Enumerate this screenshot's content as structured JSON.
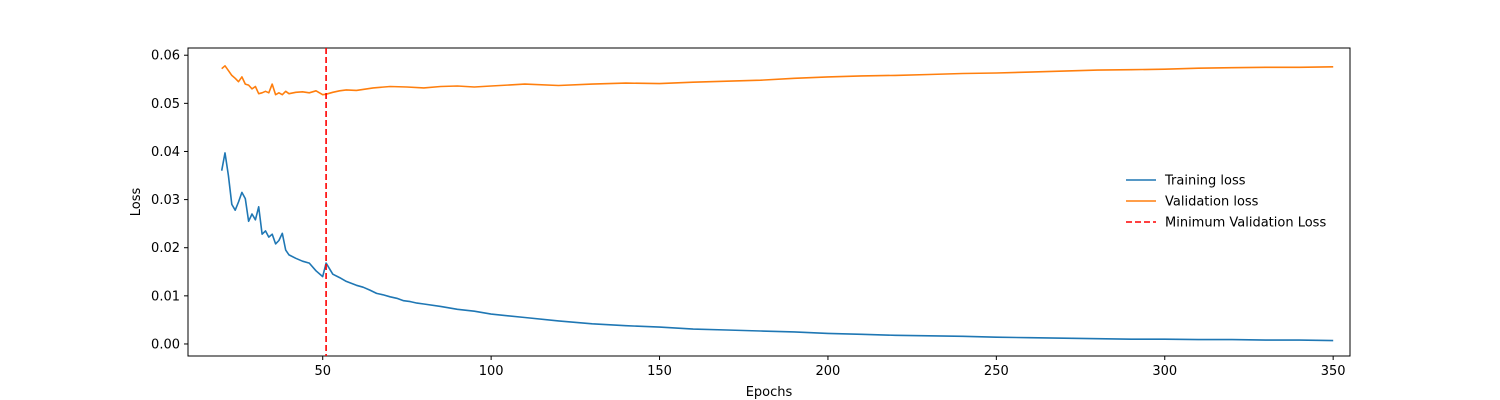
{
  "chart_data": {
    "type": "line",
    "xlabel": "Epochs",
    "ylabel": "Loss",
    "xlim": [
      10,
      355
    ],
    "ylim": [
      -0.0025,
      0.0615
    ],
    "xticks": [
      50,
      100,
      150,
      200,
      250,
      300,
      350
    ],
    "yticks": [
      0.0,
      0.01,
      0.02,
      0.03,
      0.04,
      0.05,
      0.06
    ],
    "ytick_labels": [
      "0.00",
      "0.01",
      "0.02",
      "0.03",
      "0.04",
      "0.05",
      "0.06"
    ],
    "grid": false,
    "legend_position": "center-right",
    "series": [
      {
        "name": "Training loss",
        "color": "#1f77b4",
        "x": [
          20,
          21,
          22,
          23,
          24,
          25,
          26,
          27,
          28,
          29,
          30,
          31,
          32,
          33,
          34,
          35,
          36,
          37,
          38,
          39,
          40,
          42,
          44,
          46,
          48,
          50,
          51,
          53,
          55,
          57,
          60,
          62,
          64,
          66,
          68,
          70,
          72,
          74,
          76,
          78,
          80,
          85,
          90,
          95,
          100,
          110,
          120,
          130,
          140,
          150,
          160,
          170,
          180,
          190,
          200,
          210,
          220,
          230,
          240,
          250,
          260,
          270,
          280,
          290,
          300,
          310,
          320,
          330,
          340,
          350
        ],
        "y": [
          0.036,
          0.0397,
          0.035,
          0.029,
          0.0278,
          0.0295,
          0.0315,
          0.0302,
          0.0255,
          0.027,
          0.0258,
          0.0285,
          0.0228,
          0.0235,
          0.0222,
          0.0228,
          0.0208,
          0.0215,
          0.023,
          0.0195,
          0.0185,
          0.0178,
          0.0172,
          0.0168,
          0.0152,
          0.014,
          0.0168,
          0.0145,
          0.0138,
          0.013,
          0.0122,
          0.0118,
          0.0112,
          0.0105,
          0.0102,
          0.0098,
          0.0095,
          0.009,
          0.0088,
          0.0085,
          0.0083,
          0.0078,
          0.0072,
          0.0068,
          0.0062,
          0.0055,
          0.0048,
          0.0042,
          0.0038,
          0.0035,
          0.0031,
          0.0029,
          0.0027,
          0.0025,
          0.0022,
          0.002,
          0.0018,
          0.0017,
          0.0016,
          0.0014,
          0.0013,
          0.0012,
          0.0011,
          0.001,
          0.001,
          0.0009,
          0.0009,
          0.0008,
          0.0008,
          0.0007
        ]
      },
      {
        "name": "Validation loss",
        "color": "#ff7f0e",
        "x": [
          20,
          21,
          22,
          23,
          24,
          25,
          26,
          27,
          28,
          29,
          30,
          31,
          32,
          33,
          34,
          35,
          36,
          37,
          38,
          39,
          40,
          42,
          44,
          46,
          48,
          50,
          51,
          53,
          55,
          57,
          60,
          65,
          70,
          75,
          80,
          85,
          90,
          95,
          100,
          110,
          120,
          130,
          140,
          150,
          160,
          170,
          180,
          190,
          200,
          210,
          220,
          230,
          240,
          250,
          260,
          270,
          280,
          290,
          300,
          310,
          320,
          330,
          340,
          350
        ],
        "y": [
          0.0572,
          0.0578,
          0.0568,
          0.0558,
          0.0552,
          0.0545,
          0.0555,
          0.054,
          0.0538,
          0.053,
          0.0535,
          0.052,
          0.0522,
          0.0525,
          0.0522,
          0.054,
          0.0518,
          0.0522,
          0.0518,
          0.0525,
          0.052,
          0.0523,
          0.0524,
          0.0522,
          0.0526,
          0.0518,
          0.0519,
          0.0523,
          0.0526,
          0.0528,
          0.0527,
          0.0532,
          0.0535,
          0.0534,
          0.0532,
          0.0535,
          0.0536,
          0.0534,
          0.0536,
          0.054,
          0.0537,
          0.054,
          0.0542,
          0.0541,
          0.0544,
          0.0546,
          0.0548,
          0.0552,
          0.0555,
          0.0557,
          0.0558,
          0.056,
          0.0562,
          0.0563,
          0.0565,
          0.0567,
          0.0569,
          0.057,
          0.0571,
          0.0573,
          0.0574,
          0.0575,
          0.0575,
          0.0576
        ]
      }
    ],
    "annotations": [
      {
        "type": "vline",
        "x": 51,
        "name": "Minimum Validation Loss",
        "color": "#ff0000",
        "style": "dashed"
      }
    ]
  }
}
